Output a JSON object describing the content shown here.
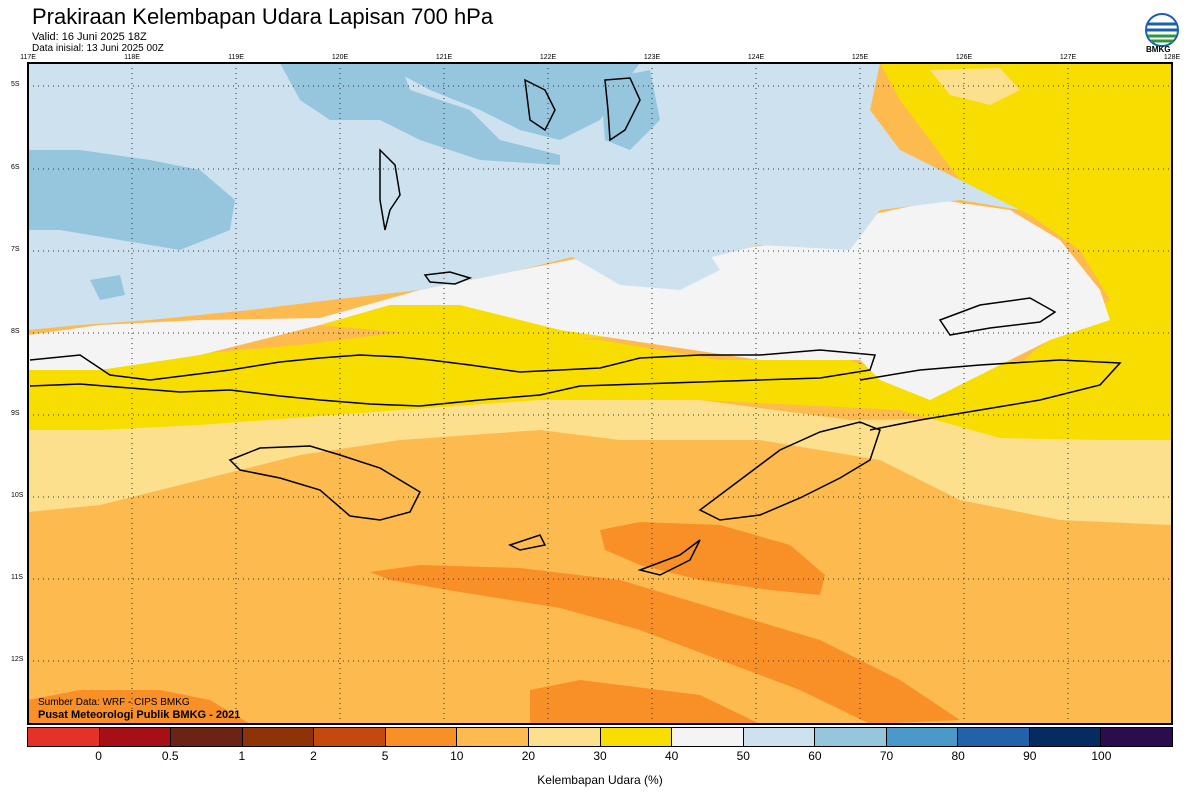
{
  "header": {
    "title": "Prakiraan Kelembapan Udara Lapisan 700 hPa",
    "valid": "Valid: 16 Juni 2025 18Z",
    "init": "Data inisial: 13 Juni 2025 00Z",
    "logo_label": "BMKG"
  },
  "map": {
    "lon_labels": [
      "117E",
      "118E",
      "119E",
      "120E",
      "121E",
      "122E",
      "123E",
      "124E",
      "125E",
      "126E",
      "127E",
      "128E"
    ],
    "lat_labels": [
      "5S",
      "6S",
      "7S",
      "8S",
      "9S",
      "10S",
      "11S",
      "12S"
    ],
    "source_line": "Sumber Data: WRF - CIPS BMKG",
    "org_line": "Pusat Meteorologi Publik BMKG - 2021"
  },
  "colorbar": {
    "title": "Kelembapan Udara (%)",
    "labels": [
      "0",
      "0.5",
      "1",
      "2",
      "5",
      "10",
      "20",
      "30",
      "40",
      "50",
      "60",
      "70",
      "80",
      "90",
      "100"
    ],
    "colors": [
      "#e4322a",
      "#a50f15",
      "#6b2413",
      "#8e3308",
      "#c4490c",
      "#f98f27",
      "#fdbb4f",
      "#fde08e",
      "#f8dd00",
      "#f4f4f4",
      "#cde2ee",
      "#95c6de",
      "#4b99c9",
      "#2362aa",
      "#062b61",
      "#2b0c4c"
    ]
  }
}
